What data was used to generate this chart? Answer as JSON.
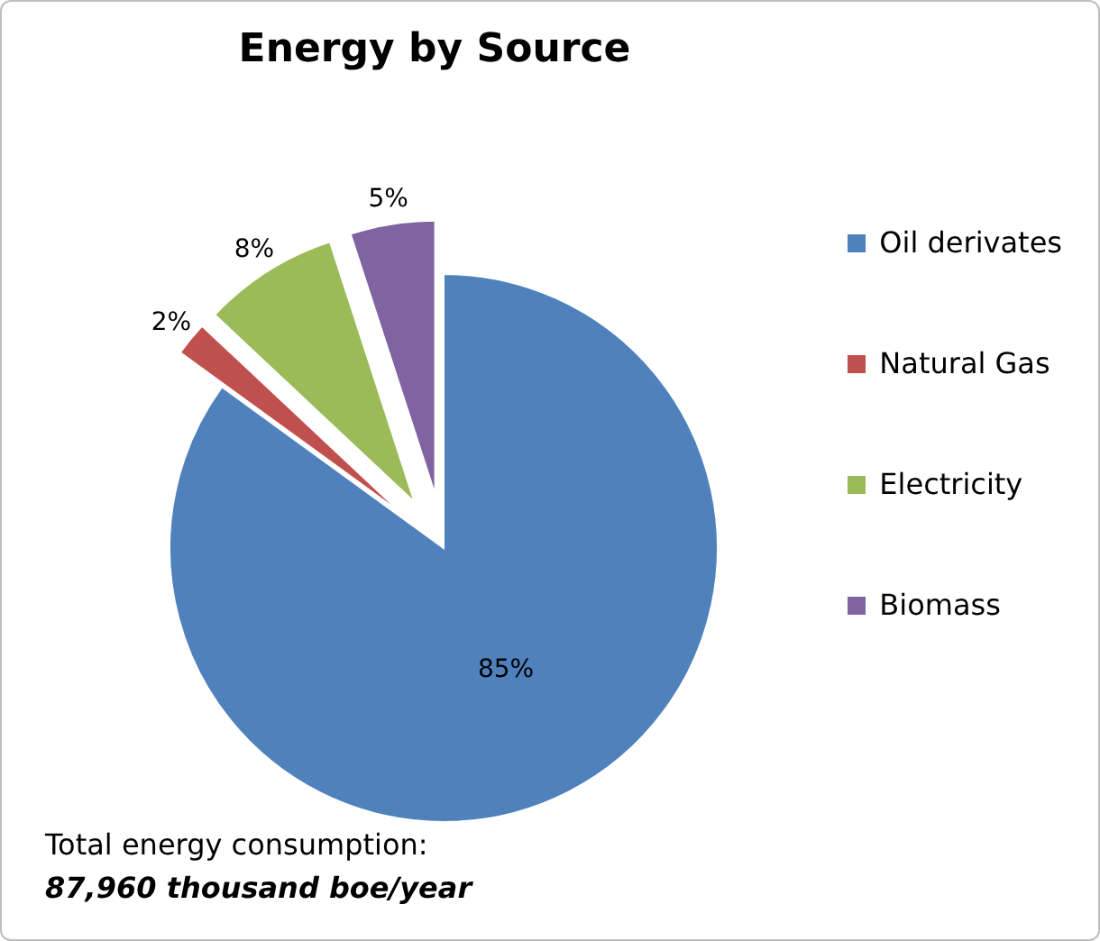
{
  "chart_data": {
    "type": "pie",
    "title": "Energy by Source",
    "categories": [
      "Oil derivates",
      "Natural Gas",
      "Electricity",
      "Biomass"
    ],
    "values": [
      85,
      2,
      8,
      5
    ],
    "colors": [
      "#4f81bd",
      "#c0504d",
      "#9bbb59",
      "#8064a2"
    ],
    "legend": "right",
    "value_labels": [
      "85%",
      "2%",
      "8%",
      "5%"
    ],
    "annotations": [
      "Total energy consumption:",
      "87,960 thousand boe/year"
    ]
  }
}
